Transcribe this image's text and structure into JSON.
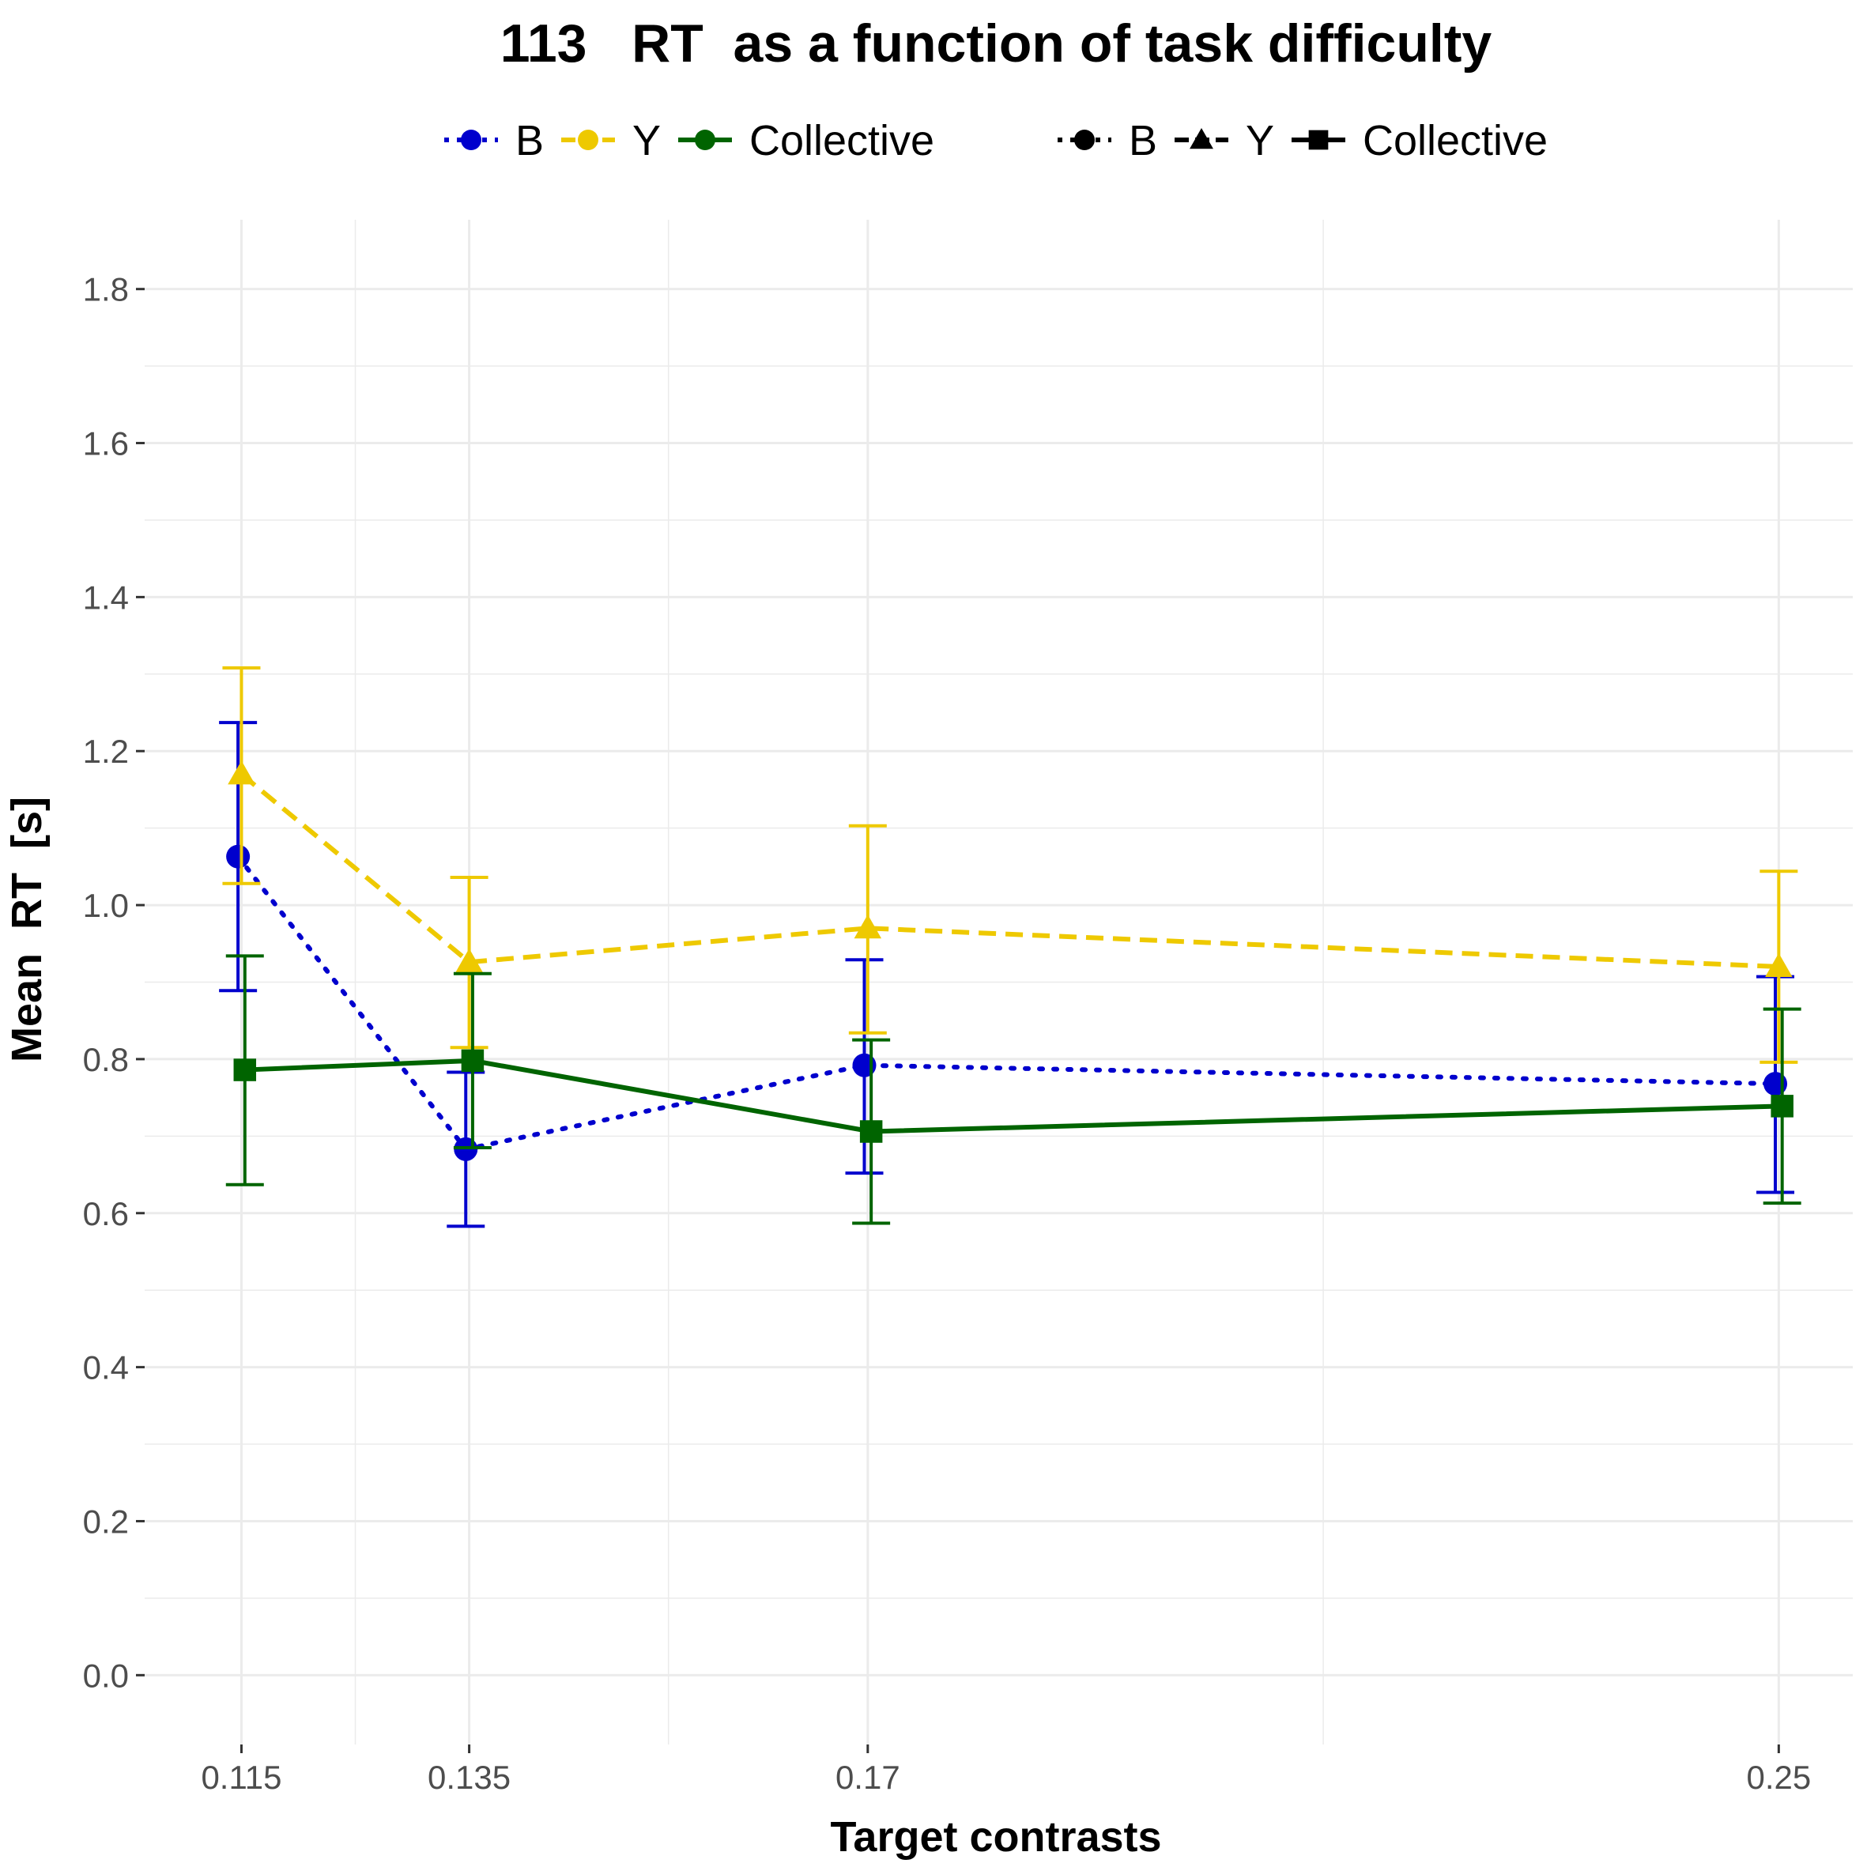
{
  "chart_data": {
    "type": "line",
    "title": "113   RT  as a function of task difficulty",
    "xlabel": "Target contrasts",
    "ylabel": "Mean  RT  [s]",
    "x": [
      0.115,
      0.135,
      0.17,
      0.25
    ],
    "x_tick_labels": [
      "0.115",
      "0.135",
      "0.17",
      "0.25"
    ],
    "y_ticks": [
      0.0,
      0.2,
      0.4,
      0.6,
      0.8,
      1.0,
      1.2,
      1.4,
      1.6,
      1.8
    ],
    "y_tick_labels": [
      "0.0",
      "0.2",
      "0.4",
      "0.6",
      "0.8",
      "1.0",
      "1.2",
      "1.4",
      "1.6",
      "1.8"
    ],
    "xlim": [
      0.1065,
      0.2565
    ],
    "ylim": [
      -0.09,
      1.89
    ],
    "grid": true,
    "legend_position": "top",
    "series": [
      {
        "name": "B",
        "color": "#0000cd",
        "linestyle": "dotted",
        "marker": "circle",
        "x": [
          0.1147,
          0.1347,
          0.1697,
          0.2497
        ],
        "values": [
          1.063,
          0.683,
          0.792,
          0.768
        ],
        "err_low": [
          0.889,
          0.583,
          0.652,
          0.627
        ],
        "err_high": [
          1.237,
          0.783,
          0.929,
          0.907
        ]
      },
      {
        "name": "Y",
        "color": "#eec900",
        "linestyle": "dashed",
        "marker": "triangle",
        "x": [
          0.115,
          0.135,
          0.17,
          0.25
        ],
        "values": [
          1.17,
          0.926,
          0.97,
          0.92
        ],
        "err_low": [
          1.028,
          0.815,
          0.834,
          0.796
        ],
        "err_high": [
          1.308,
          1.036,
          1.103,
          1.044
        ]
      },
      {
        "name": "Collective",
        "color": "#006400",
        "linestyle": "solid",
        "marker": "square",
        "x": [
          0.1153,
          0.1353,
          0.1703,
          0.2503
        ],
        "values": [
          0.786,
          0.798,
          0.706,
          0.739
        ],
        "err_low": [
          0.637,
          0.685,
          0.587,
          0.613
        ],
        "err_high": [
          0.934,
          0.911,
          0.825,
          0.865
        ]
      }
    ],
    "legend_color": {
      "entries": [
        {
          "label": "B",
          "color": "#0000cd"
        },
        {
          "label": "Y",
          "color": "#eec900"
        },
        {
          "label": "Collective",
          "color": "#006400"
        }
      ]
    },
    "legend_shape": {
      "entries": [
        {
          "label": "B",
          "marker": "circle"
        },
        {
          "label": "Y",
          "marker": "triangle"
        },
        {
          "label": "Collective",
          "marker": "square"
        }
      ]
    }
  }
}
